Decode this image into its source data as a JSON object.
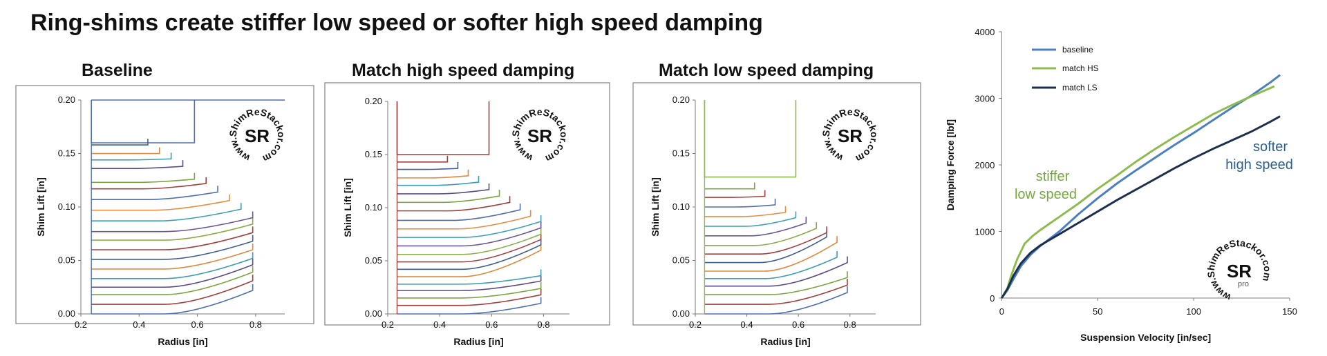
{
  "title": "Ring-shims create stiffer low speed or softer high speed damping",
  "watermark": {
    "url": "www.ShimReStackor.com",
    "logo": "SR",
    "pro": "pro"
  },
  "chart_data": [
    {
      "type": "line",
      "title": "Baseline",
      "xlabel": "Radius [in]",
      "ylabel": "Shim Lift [in]",
      "xlim": [
        0.2,
        0.9
      ],
      "ylim": [
        0,
        0.2
      ],
      "xticks": [
        "0.2",
        "0.4",
        "0.6",
        "0.8"
      ],
      "yticks": [
        "0.00",
        "0.05",
        "0.10",
        "0.15",
        "0.20"
      ],
      "clamp_radius": 0.236,
      "big_rect": {
        "y0": 0.16,
        "y1": 0.2,
        "r": 0.59
      },
      "shims": [
        {
          "y": 0.0,
          "r": 0.79,
          "d": 0.022
        },
        {
          "y": 0.009,
          "r": 0.79,
          "d": 0.022
        },
        {
          "y": 0.018,
          "r": 0.79,
          "d": 0.021
        },
        {
          "y": 0.025,
          "r": 0.79,
          "d": 0.021
        },
        {
          "y": 0.033,
          "r": 0.79,
          "d": 0.019
        },
        {
          "y": 0.042,
          "r": 0.79,
          "d": 0.018
        },
        {
          "y": 0.051,
          "r": 0.79,
          "d": 0.017
        },
        {
          "y": 0.06,
          "r": 0.79,
          "d": 0.016
        },
        {
          "y": 0.069,
          "r": 0.79,
          "d": 0.015
        },
        {
          "y": 0.077,
          "r": 0.79,
          "d": 0.013
        },
        {
          "y": 0.087,
          "r": 0.75,
          "d": 0.011
        },
        {
          "y": 0.097,
          "r": 0.71,
          "d": 0.009
        },
        {
          "y": 0.107,
          "r": 0.67,
          "d": 0.007
        },
        {
          "y": 0.117,
          "r": 0.63,
          "d": 0.005
        },
        {
          "y": 0.123,
          "r": 0.59,
          "d": 0.003
        },
        {
          "y": 0.136,
          "r": 0.55,
          "d": 0.002
        },
        {
          "y": 0.144,
          "r": 0.51,
          "d": 0.001
        },
        {
          "y": 0.15,
          "r": 0.47,
          "d": 0.0
        },
        {
          "y": 0.158,
          "r": 0.43,
          "d": 0.0
        }
      ]
    },
    {
      "type": "line",
      "title": "Match high speed damping",
      "xlabel": "Radius [in]",
      "ylabel": "Shim Lift [in]",
      "xlim": [
        0.2,
        0.9
      ],
      "ylim": [
        0,
        0.2
      ],
      "xticks": [
        "0.2",
        "0.4",
        "0.6",
        "0.8"
      ],
      "yticks": [
        "0.00",
        "0.05",
        "0.10",
        "0.15",
        "0.20"
      ],
      "clamp_radius": 0.236,
      "big_rect": {
        "y0": 0.15,
        "y1": 0.2,
        "r": 0.59
      },
      "shims": [
        {
          "y": 0.0,
          "r": 0.79,
          "d": 0.01
        },
        {
          "y": 0.008,
          "r": 0.79,
          "d": 0.01
        },
        {
          "y": 0.015,
          "r": 0.79,
          "d": 0.009
        },
        {
          "y": 0.022,
          "r": 0.79,
          "d": 0.009
        },
        {
          "y": 0.028,
          "r": 0.79,
          "d": 0.008
        },
        {
          "y": 0.035,
          "r": 0.79,
          "d": 0.025
        },
        {
          "y": 0.042,
          "r": 0.79,
          "d": 0.023
        },
        {
          "y": 0.049,
          "r": 0.79,
          "d": 0.021
        },
        {
          "y": 0.056,
          "r": 0.79,
          "d": 0.019
        },
        {
          "y": 0.064,
          "r": 0.79,
          "d": 0.017
        },
        {
          "y": 0.072,
          "r": 0.79,
          "d": 0.015
        },
        {
          "y": 0.08,
          "r": 0.75,
          "d": 0.012
        },
        {
          "y": 0.088,
          "r": 0.71,
          "d": 0.01
        },
        {
          "y": 0.097,
          "r": 0.67,
          "d": 0.008
        },
        {
          "y": 0.105,
          "r": 0.63,
          "d": 0.006
        },
        {
          "y": 0.113,
          "r": 0.59,
          "d": 0.004
        },
        {
          "y": 0.121,
          "r": 0.55,
          "d": 0.003
        },
        {
          "y": 0.128,
          "r": 0.51,
          "d": 0.002
        },
        {
          "y": 0.136,
          "r": 0.47,
          "d": 0.001
        },
        {
          "y": 0.143,
          "r": 0.43,
          "d": 0.0
        }
      ]
    },
    {
      "type": "line",
      "title": "Match low speed damping",
      "xlabel": "Radius [in]",
      "ylabel": "Shim Lift [in]",
      "xlim": [
        0.2,
        0.9
      ],
      "ylim": [
        0,
        0.2
      ],
      "xticks": [
        "0.2",
        "0.4",
        "0.6",
        "0.8"
      ],
      "yticks": [
        "0.00",
        "0.05",
        "0.10",
        "0.15",
        "0.20"
      ],
      "clamp_radius": 0.236,
      "big_rect": {
        "y0": 0.128,
        "y1": 0.2,
        "r": 0.59
      },
      "shims": [
        {
          "y": 0.0,
          "r": 0.79,
          "d": 0.02
        },
        {
          "y": 0.009,
          "r": 0.79,
          "d": 0.018
        },
        {
          "y": 0.018,
          "r": 0.79,
          "d": 0.016
        },
        {
          "y": 0.026,
          "r": 0.79,
          "d": 0.022
        },
        {
          "y": 0.033,
          "r": 0.75,
          "d": 0.02
        },
        {
          "y": 0.04,
          "r": 0.75,
          "d": 0.027
        },
        {
          "y": 0.048,
          "r": 0.71,
          "d": 0.024
        },
        {
          "y": 0.056,
          "r": 0.71,
          "d": 0.02
        },
        {
          "y": 0.064,
          "r": 0.67,
          "d": 0.016
        },
        {
          "y": 0.073,
          "r": 0.63,
          "d": 0.012
        },
        {
          "y": 0.082,
          "r": 0.59,
          "d": 0.008
        },
        {
          "y": 0.091,
          "r": 0.55,
          "d": 0.004
        },
        {
          "y": 0.1,
          "r": 0.51,
          "d": 0.002
        },
        {
          "y": 0.109,
          "r": 0.47,
          "d": 0.001
        },
        {
          "y": 0.117,
          "r": 0.43,
          "d": 0.0
        }
      ]
    },
    {
      "type": "line",
      "title": "",
      "xlabel": "Suspension Velocity [in/sec]",
      "ylabel": "Damping Force [lbf]",
      "xlim": [
        -3,
        150
      ],
      "ylim": [
        0,
        4000
      ],
      "xticks": [
        0,
        50,
        100,
        150
      ],
      "yticks": [
        0,
        1000,
        2000,
        3000,
        4000
      ],
      "series": [
        {
          "name": "baseline",
          "color": "#4a7fc1",
          "x": [
            0,
            3,
            6,
            10,
            15,
            20,
            30,
            40,
            50,
            60,
            70,
            80,
            90,
            100,
            110,
            120,
            130,
            140,
            145
          ],
          "y": [
            0,
            120,
            280,
            480,
            650,
            780,
            1000,
            1260,
            1500,
            1720,
            1920,
            2110,
            2300,
            2480,
            2670,
            2860,
            3040,
            3240,
            3350
          ]
        },
        {
          "name": "match HS",
          "color": "#8dbc4e",
          "x": [
            0,
            3,
            5,
            8,
            12,
            16,
            20,
            30,
            40,
            50,
            60,
            70,
            80,
            90,
            100,
            110,
            120,
            130,
            142
          ],
          "y": [
            0,
            150,
            340,
            580,
            820,
            930,
            1020,
            1220,
            1420,
            1640,
            1840,
            2050,
            2240,
            2420,
            2590,
            2760,
            2900,
            3030,
            3180
          ]
        },
        {
          "name": "match LS",
          "color": "#1c2f4e",
          "x": [
            0,
            3,
            6,
            10,
            15,
            20,
            30,
            40,
            50,
            60,
            70,
            80,
            90,
            100,
            110,
            120,
            130,
            140,
            145
          ],
          "y": [
            0,
            140,
            330,
            520,
            680,
            790,
            960,
            1130,
            1300,
            1470,
            1630,
            1790,
            1950,
            2100,
            2240,
            2370,
            2500,
            2650,
            2730
          ]
        }
      ],
      "annotations": {
        "stiffer": {
          "text1": "stiffer",
          "text2": "low speed",
          "color": "#77a83f"
        },
        "softer": {
          "text1": "softer",
          "text2": "high speed",
          "color": "#2e5e8c"
        }
      }
    }
  ]
}
